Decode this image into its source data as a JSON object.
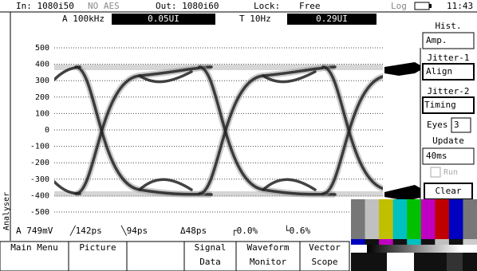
{
  "status_bar": {
    "input": "In: 1080i50",
    "aes": "NO AES",
    "output": "Out: 1080i60",
    "lock_label": "Lock:",
    "lock_value": "Free",
    "log": "Log",
    "time": "11:43"
  },
  "jitter_readout": {
    "a_filter": "A 100kHz",
    "a_value": "0.05UI",
    "t_filter": "T 10Hz",
    "t_value": "0.29UI"
  },
  "y_axis_ticks": [
    "500",
    "400",
    "300",
    "200",
    "100",
    "0",
    "-100",
    "-200",
    "-300",
    "-400",
    "-500"
  ],
  "measurements": [
    "A 749mV",
    "╱142ps",
    "╲94ps",
    "Δ48ps",
    "┌0.0%",
    "└0.6%"
  ],
  "side_label": "Analyser",
  "side_panel": {
    "hist_label": "Hist.",
    "hist_value": "Amp.",
    "jitter1_label": "Jitter-1",
    "jitter1_value": "Align",
    "jitter2_label": "Jitter-2",
    "jitter2_value": "Timing",
    "eyes_label": "Eyes",
    "eyes_value": "3",
    "update_label": "Update",
    "update_value": "40ms",
    "run": "Run",
    "clear": "Clear"
  },
  "softkeys": [
    [
      "Main Menu"
    ],
    [
      "Picture"
    ],
    [
      "Signal",
      "Data"
    ],
    [
      "Waveform",
      "Monitor"
    ],
    [
      "Vector",
      "Scope"
    ]
  ]
}
